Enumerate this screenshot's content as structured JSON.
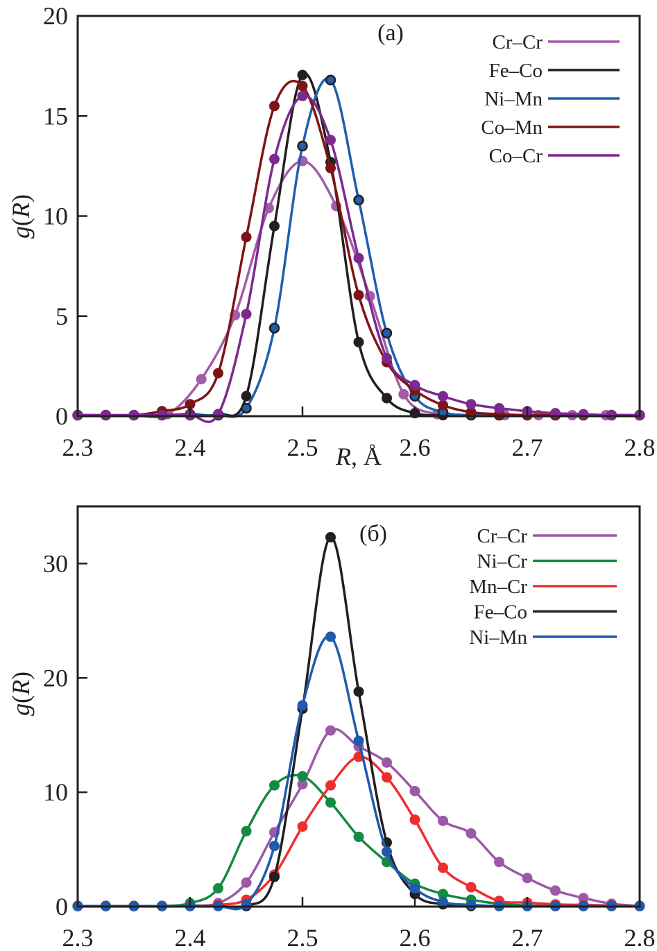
{
  "chart_data": [
    {
      "type": "line",
      "panel_label": "(a)",
      "xlabel_italic": "R",
      "xlabel_rest": ", Å",
      "ylabel_italic_g": "g",
      "ylabel_paren_open": "(",
      "ylabel_italic_R": "R",
      "ylabel_paren_close": ")",
      "xlim": [
        2.3,
        2.8
      ],
      "ylim": [
        0,
        20
      ],
      "xticks": [
        2.3,
        2.4,
        2.5,
        2.6,
        2.7,
        2.8
      ],
      "xtick_labels": [
        "2.3",
        "2.4",
        "2.5",
        "2.6",
        "2.7",
        "2.8"
      ],
      "yticks": [
        0,
        5,
        10,
        15,
        20
      ],
      "ytick_labels": [
        "0",
        "5",
        "10",
        "15",
        "20"
      ],
      "grid": false,
      "legend_position": "top-right",
      "series": [
        {
          "name": "Cr–Cr",
          "color": "#a35ca8",
          "marker_outline": false,
          "x": [
            2.3,
            2.325,
            2.35,
            2.38,
            2.41,
            2.44,
            2.47,
            2.5,
            2.53,
            2.56,
            2.59,
            2.62,
            2.65,
            2.68,
            2.71,
            2.74,
            2.77,
            2.8
          ],
          "y": [
            0.05,
            0.05,
            0.05,
            0.1,
            1.85,
            5.05,
            10.4,
            12.75,
            10.5,
            6.0,
            1.1,
            0.1,
            0.05,
            0.05,
            0.05,
            0.05,
            0.05,
            0.05
          ]
        },
        {
          "name": "Fe–Co",
          "color": "#231f20",
          "marker_outline": false,
          "x": [
            2.3,
            2.325,
            2.35,
            2.375,
            2.4,
            2.425,
            2.45,
            2.475,
            2.5,
            2.525,
            2.55,
            2.575,
            2.6,
            2.625,
            2.65,
            2.675,
            2.7,
            2.725,
            2.75,
            2.775,
            2.8
          ],
          "y": [
            0.05,
            0.05,
            0.05,
            0.05,
            0.1,
            0.1,
            1.0,
            9.5,
            17.05,
            12.7,
            3.7,
            0.9,
            0.15,
            0.05,
            0.05,
            0.05,
            0.05,
            0.05,
            0.05,
            0.05,
            0.05
          ]
        },
        {
          "name": "Ni–Mn",
          "color": "#1f5fad",
          "marker_outline": true,
          "x": [
            2.3,
            2.325,
            2.35,
            2.375,
            2.4,
            2.425,
            2.45,
            2.475,
            2.5,
            2.525,
            2.55,
            2.575,
            2.6,
            2.625,
            2.65,
            2.675,
            2.7,
            2.725,
            2.75,
            2.775,
            2.8
          ],
          "y": [
            0.05,
            0.05,
            0.05,
            0.05,
            0.05,
            0.05,
            0.4,
            4.4,
            13.5,
            16.8,
            10.8,
            4.15,
            1.0,
            0.2,
            0.05,
            0.05,
            0.05,
            0.05,
            0.05,
            0.05,
            0.05
          ]
        },
        {
          "name": "Co–Mn",
          "color": "#7f1416",
          "marker_outline": false,
          "x": [
            2.3,
            2.325,
            2.35,
            2.375,
            2.4,
            2.425,
            2.45,
            2.475,
            2.5,
            2.525,
            2.55,
            2.575,
            2.6,
            2.625,
            2.65,
            2.675,
            2.7,
            2.725,
            2.75,
            2.775,
            2.8
          ],
          "y": [
            0.05,
            0.05,
            0.05,
            0.25,
            0.6,
            2.15,
            8.95,
            15.5,
            16.5,
            12.4,
            6.05,
            2.7,
            1.3,
            0.55,
            0.2,
            0.1,
            0.05,
            0.05,
            0.05,
            0.05,
            0.05
          ]
        },
        {
          "name": "Co–Cr",
          "color": "#7b2a8e",
          "marker_outline": false,
          "x": [
            2.3,
            2.325,
            2.35,
            2.375,
            2.4,
            2.425,
            2.45,
            2.475,
            2.5,
            2.525,
            2.55,
            2.575,
            2.6,
            2.625,
            2.65,
            2.675,
            2.7,
            2.725,
            2.75,
            2.775,
            2.8
          ],
          "y": [
            0.05,
            0.05,
            0.05,
            0.05,
            0.05,
            0.1,
            5.1,
            12.85,
            16.0,
            13.8,
            7.9,
            2.9,
            1.55,
            1.0,
            0.6,
            0.4,
            0.25,
            0.15,
            0.1,
            0.05,
            0.05
          ]
        }
      ]
    },
    {
      "type": "line",
      "panel_label": "(б)",
      "xlabel_italic": "",
      "xlabel_rest": "",
      "ylabel_italic_g": "g",
      "ylabel_paren_open": "(",
      "ylabel_italic_R": "R",
      "ylabel_paren_close": ")",
      "xlim": [
        2.3,
        2.8
      ],
      "ylim": [
        0,
        35
      ],
      "xticks": [
        2.3,
        2.4,
        2.5,
        2.6,
        2.7,
        2.8
      ],
      "xtick_labels": [
        "2.3",
        "2.4",
        "2.5",
        "2.6",
        "2.7",
        "2.8"
      ],
      "yticks": [
        0,
        10,
        20,
        30
      ],
      "ytick_labels": [
        "0",
        "10",
        "20",
        "30"
      ],
      "grid": false,
      "legend_position": "top-right",
      "series": [
        {
          "name": "Cr–Cr",
          "color": "#9b59a8",
          "marker_outline": false,
          "x": [
            2.3,
            2.325,
            2.35,
            2.375,
            2.4,
            2.425,
            2.45,
            2.475,
            2.5,
            2.525,
            2.55,
            2.575,
            2.6,
            2.625,
            2.65,
            2.675,
            2.7,
            2.725,
            2.75,
            2.775,
            2.8
          ],
          "y": [
            0.05,
            0.05,
            0.05,
            0.05,
            0.1,
            0.3,
            2.1,
            6.5,
            10.7,
            15.4,
            14.0,
            12.6,
            10.1,
            7.5,
            6.4,
            3.9,
            2.5,
            1.4,
            0.75,
            0.25,
            0.05
          ]
        },
        {
          "name": "Ni–Cr",
          "color": "#148a43",
          "marker_outline": false,
          "x": [
            2.3,
            2.325,
            2.35,
            2.375,
            2.4,
            2.425,
            2.45,
            2.475,
            2.5,
            2.525,
            2.55,
            2.575,
            2.6,
            2.625,
            2.65,
            2.675,
            2.7,
            2.725,
            2.75,
            2.775,
            2.8
          ],
          "y": [
            0.05,
            0.05,
            0.05,
            0.05,
            0.3,
            1.6,
            6.6,
            10.6,
            11.4,
            9.1,
            6.1,
            3.9,
            2.0,
            1.1,
            0.6,
            0.25,
            0.1,
            0.05,
            0.05,
            0.05,
            0.05
          ]
        },
        {
          "name": "Mn–Cr",
          "color": "#ee2e2e",
          "marker_outline": false,
          "x": [
            2.3,
            2.325,
            2.35,
            2.375,
            2.4,
            2.425,
            2.45,
            2.475,
            2.5,
            2.525,
            2.55,
            2.575,
            2.6,
            2.625,
            2.65,
            2.675,
            2.7,
            2.725,
            2.75,
            2.775,
            2.8
          ],
          "y": [
            0.05,
            0.05,
            0.05,
            0.05,
            0.05,
            0.15,
            0.6,
            2.8,
            7.0,
            10.6,
            13.1,
            11.3,
            7.6,
            3.4,
            1.7,
            0.5,
            0.35,
            0.2,
            0.15,
            0.1,
            0.05
          ]
        },
        {
          "name": "Fe–Co",
          "color": "#231f20",
          "marker_outline": false,
          "x": [
            2.3,
            2.325,
            2.35,
            2.375,
            2.4,
            2.425,
            2.45,
            2.475,
            2.5,
            2.525,
            2.55,
            2.575,
            2.6,
            2.625,
            2.65,
            2.675,
            2.7,
            2.725,
            2.75,
            2.775,
            2.8
          ],
          "y": [
            0.05,
            0.05,
            0.05,
            0.05,
            0.05,
            0.05,
            0.05,
            2.6,
            17.3,
            32.3,
            18.8,
            5.6,
            1.1,
            0.2,
            0.05,
            0.05,
            0.05,
            0.05,
            0.05,
            0.05,
            0.05
          ]
        },
        {
          "name": "Ni–Mn",
          "color": "#1f5aad",
          "marker_outline": false,
          "x": [
            2.3,
            2.325,
            2.35,
            2.375,
            2.4,
            2.425,
            2.45,
            2.475,
            2.5,
            2.525,
            2.55,
            2.575,
            2.6,
            2.625,
            2.65,
            2.675,
            2.7,
            2.725,
            2.75,
            2.775,
            2.8
          ],
          "y": [
            0.05,
            0.05,
            0.05,
            0.05,
            0.05,
            0.05,
            0.2,
            5.3,
            17.6,
            23.6,
            14.5,
            4.8,
            1.6,
            0.4,
            0.15,
            0.05,
            0.05,
            0.05,
            0.05,
            0.05,
            0.05
          ]
        }
      ]
    }
  ]
}
